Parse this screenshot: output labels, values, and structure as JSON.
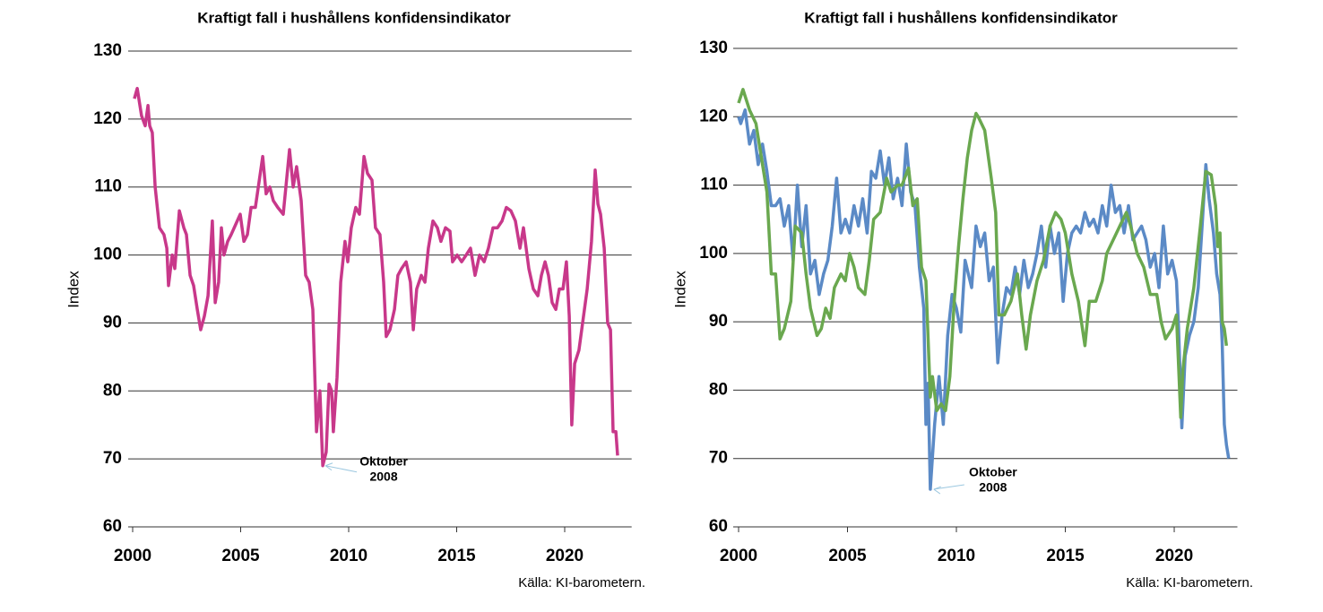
{
  "chart_data": [
    {
      "type": "line",
      "title": "Kraftigt fall i hushållens konfidensindikator",
      "y_label": "Index",
      "source": "Källa: KI-barometern.",
      "xlim": [
        2000,
        2023.1
      ],
      "xticks": [
        2000,
        2005,
        2010,
        2015,
        2020
      ],
      "ylim": [
        60,
        130
      ],
      "yticks": [
        60,
        70,
        80,
        90,
        100,
        110,
        120,
        130
      ],
      "grid": true,
      "annotation": {
        "text": [
          "Oktober",
          "2008"
        ],
        "x": 2008.8,
        "y": 69
      },
      "series": [
        {
          "name": null,
          "color": "#c8388a",
          "x": [
            2000.08,
            2000.21,
            2000.41,
            2000.58,
            2000.71,
            2000.79,
            2000.91,
            2001.04,
            2001.24,
            2001.45,
            2001.58,
            2001.66,
            2001.83,
            2001.95,
            2002.16,
            2002.37,
            2002.49,
            2002.66,
            2002.82,
            2002.99,
            2003.15,
            2003.32,
            2003.49,
            2003.69,
            2003.82,
            2003.98,
            2004.11,
            2004.23,
            2004.4,
            2004.56,
            2004.77,
            2004.98,
            2005.15,
            2005.31,
            2005.48,
            2005.68,
            2006.02,
            2006.18,
            2006.35,
            2006.51,
            2006.72,
            2006.97,
            2007.26,
            2007.43,
            2007.59,
            2007.8,
            2008.01,
            2008.17,
            2008.34,
            2008.51,
            2008.67,
            2008.8,
            2008.96,
            2009.09,
            2009.21,
            2009.29,
            2009.46,
            2009.63,
            2009.83,
            2009.96,
            2010.12,
            2010.33,
            2010.5,
            2010.71,
            2010.87,
            2011.08,
            2011.24,
            2011.45,
            2011.62,
            2011.74,
            2011.91,
            2012.12,
            2012.28,
            2012.45,
            2012.66,
            2012.86,
            2012.99,
            2013.15,
            2013.36,
            2013.53,
            2013.69,
            2013.9,
            2014.11,
            2014.27,
            2014.48,
            2014.69,
            2014.81,
            2015.02,
            2015.23,
            2015.44,
            2015.64,
            2015.85,
            2016.06,
            2016.27,
            2016.47,
            2016.68,
            2016.89,
            2017.1,
            2017.3,
            2017.51,
            2017.72,
            2017.93,
            2018.09,
            2018.34,
            2018.55,
            2018.76,
            2018.92,
            2019.09,
            2019.25,
            2019.42,
            2019.59,
            2019.75,
            2019.92,
            2020.08,
            2020.21,
            2020.33,
            2020.46,
            2020.66,
            2020.83,
            2021.04,
            2021.24,
            2021.41,
            2021.54,
            2021.66,
            2021.83,
            2021.99,
            2022.12,
            2022.24,
            2022.37,
            2022.45
          ],
          "values": [
            123,
            124.5,
            120.5,
            119,
            122,
            119,
            118,
            110,
            104,
            103,
            101,
            95.5,
            100,
            98,
            106.5,
            104,
            103,
            97,
            95.5,
            92,
            89,
            91,
            94,
            105,
            93,
            96,
            104,
            100,
            102,
            103,
            104.5,
            106,
            102,
            103,
            107,
            107,
            114.5,
            109,
            110,
            108,
            107,
            106,
            115.5,
            110,
            113,
            108,
            97,
            96,
            92,
            74,
            80,
            69,
            71,
            81,
            80,
            74,
            82,
            96,
            102,
            99,
            104,
            107,
            106,
            114.5,
            112,
            111,
            104,
            103,
            96,
            88,
            89,
            92,
            97,
            98,
            99,
            96,
            89,
            95,
            97,
            96,
            101,
            105,
            104,
            102,
            104,
            103.5,
            99,
            100,
            99,
            100,
            101,
            97,
            100,
            99,
            101,
            104,
            104,
            105,
            107,
            106.5,
            105,
            101,
            104,
            98,
            95,
            94,
            97,
            99,
            97,
            93,
            92,
            95,
            95,
            99,
            91,
            75,
            84,
            86,
            90,
            95,
            102,
            112.5,
            107.5,
            106,
            101,
            90,
            89,
            74,
            74,
            70.5
          ]
        }
      ]
    },
    {
      "type": "line",
      "title": "Kraftigt fall i hushållens konfidensindikator",
      "y_label": "Index",
      "source": "Källa: KI-barometern.",
      "xlim": [
        2000,
        2022.9
      ],
      "xticks": [
        2000,
        2005,
        2010,
        2015,
        2020
      ],
      "ylim": [
        60,
        130
      ],
      "yticks": [
        60,
        70,
        80,
        90,
        100,
        110,
        120,
        130
      ],
      "grid": true,
      "annotation": {
        "text": [
          "Oktober",
          "2008"
        ],
        "x": 2008.8,
        "y": 65.5
      },
      "series": [
        {
          "name": null,
          "color": "#5b8ac6",
          "x": [
            2000,
            2000.1,
            2000.3,
            2000.5,
            2000.7,
            2000.9,
            2001.1,
            2001.3,
            2001.5,
            2001.7,
            2001.9,
            2002.1,
            2002.3,
            2002.5,
            2002.7,
            2002.9,
            2003.1,
            2003.3,
            2003.5,
            2003.7,
            2003.9,
            2004.1,
            2004.3,
            2004.5,
            2004.7,
            2004.9,
            2005.1,
            2005.3,
            2005.5,
            2005.7,
            2005.9,
            2006.1,
            2006.3,
            2006.5,
            2006.7,
            2006.9,
            2007.1,
            2007.3,
            2007.5,
            2007.7,
            2007.9,
            2008.1,
            2008.3,
            2008.5,
            2008.6,
            2008.7,
            2008.8,
            2009,
            2009.2,
            2009.4,
            2009.6,
            2009.8,
            2010,
            2010.2,
            2010.4,
            2010.7,
            2010.9,
            2011.1,
            2011.3,
            2011.5,
            2011.7,
            2011.9,
            2012.1,
            2012.3,
            2012.5,
            2012.7,
            2012.9,
            2013.1,
            2013.3,
            2013.5,
            2013.7,
            2013.9,
            2014.1,
            2014.3,
            2014.5,
            2014.7,
            2014.9,
            2015.1,
            2015.3,
            2015.5,
            2015.7,
            2015.9,
            2016.1,
            2016.3,
            2016.5,
            2016.7,
            2016.9,
            2017.1,
            2017.3,
            2017.5,
            2017.7,
            2017.9,
            2018.1,
            2018.3,
            2018.5,
            2018.7,
            2018.9,
            2019.1,
            2019.3,
            2019.5,
            2019.7,
            2019.9,
            2020.1,
            2020.2,
            2020.35,
            2020.5,
            2020.7,
            2020.9,
            2021.1,
            2021.3,
            2021.45,
            2021.6,
            2021.8,
            2021.95,
            2022.1,
            2022.2,
            2022.3,
            2022.4,
            2022.5
          ],
          "values": [
            120,
            119,
            121,
            116,
            118,
            113,
            116,
            112,
            107,
            107,
            108,
            104,
            107,
            99,
            110,
            101,
            107,
            97,
            99,
            94,
            97,
            99,
            104,
            111,
            103,
            105,
            103,
            107,
            104,
            108,
            103,
            112,
            111,
            115,
            110,
            114,
            108,
            111,
            107,
            116,
            109,
            107,
            98,
            92,
            75,
            81,
            65.5,
            75,
            82,
            75,
            88,
            94,
            92,
            88.5,
            99,
            95,
            104,
            101,
            103,
            96,
            98,
            84,
            91,
            95,
            94,
            98,
            94,
            99,
            95,
            97,
            100,
            104,
            98,
            104,
            100,
            103,
            93,
            100,
            103,
            104,
            103,
            106,
            104,
            105,
            103,
            107,
            104,
            110,
            106,
            107,
            103,
            107,
            102,
            103,
            104,
            102,
            98,
            100,
            95,
            104,
            97,
            99,
            96,
            89,
            74.5,
            85,
            88,
            90,
            95,
            105,
            113,
            108,
            103,
            97,
            94,
            87,
            75,
            72,
            70
          ]
        },
        {
          "name": null,
          "color": "#6aa84f",
          "x": [
            2000,
            2000.2,
            2000.5,
            2000.8,
            2001.1,
            2001.3,
            2001.5,
            2001.7,
            2001.9,
            2002.1,
            2002.4,
            2002.6,
            2002.9,
            2003.1,
            2003.3,
            2003.6,
            2003.8,
            2004,
            2004.2,
            2004.4,
            2004.7,
            2004.9,
            2005.1,
            2005.3,
            2005.5,
            2005.8,
            2006,
            2006.2,
            2006.5,
            2006.8,
            2007,
            2007.3,
            2007.5,
            2007.8,
            2008,
            2008.2,
            2008.4,
            2008.6,
            2008.8,
            2008.9,
            2009.1,
            2009.3,
            2009.5,
            2009.7,
            2009.9,
            2010.1,
            2010.3,
            2010.5,
            2010.7,
            2010.9,
            2011.0,
            2011.3,
            2011.6,
            2011.8,
            2011.95,
            2012.2,
            2012.5,
            2012.8,
            2013,
            2013.2,
            2013.4,
            2013.7,
            2014,
            2014.3,
            2014.55,
            2014.8,
            2015,
            2015.3,
            2015.6,
            2015.9,
            2016.1,
            2016.4,
            2016.7,
            2016.9,
            2017.2,
            2017.5,
            2017.8,
            2018,
            2018.3,
            2018.6,
            2018.9,
            2019.2,
            2019.4,
            2019.6,
            2019.9,
            2020.1,
            2020.3,
            2020.4,
            2020.6,
            2020.9,
            2021.2,
            2021.45,
            2021.7,
            2021.9,
            2022,
            2022.1,
            2022.2,
            2022.3,
            2022.4
          ],
          "values": [
            122,
            124,
            121,
            119,
            113,
            109,
            97,
            97,
            87.5,
            89,
            93,
            104,
            103,
            97,
            92,
            88,
            89,
            92,
            90.5,
            95,
            97,
            96,
            100,
            98,
            95,
            94,
            99,
            105,
            106,
            111,
            109,
            110,
            110,
            112.5,
            107,
            108,
            98,
            96,
            79,
            82,
            77,
            78,
            77,
            82,
            93,
            101,
            108,
            114,
            118,
            120.5,
            120,
            118,
            111,
            106,
            91,
            91,
            93,
            97,
            91,
            86,
            91,
            96,
            99,
            104,
            106,
            105,
            103,
            97,
            93,
            86.5,
            93,
            93,
            96,
            100,
            102,
            104,
            106,
            104,
            100,
            98,
            94,
            94,
            90,
            87.5,
            89,
            91,
            76,
            83,
            89,
            95,
            104,
            112,
            111.5,
            107,
            101,
            103,
            90,
            89,
            86.5
          ]
        }
      ]
    }
  ]
}
